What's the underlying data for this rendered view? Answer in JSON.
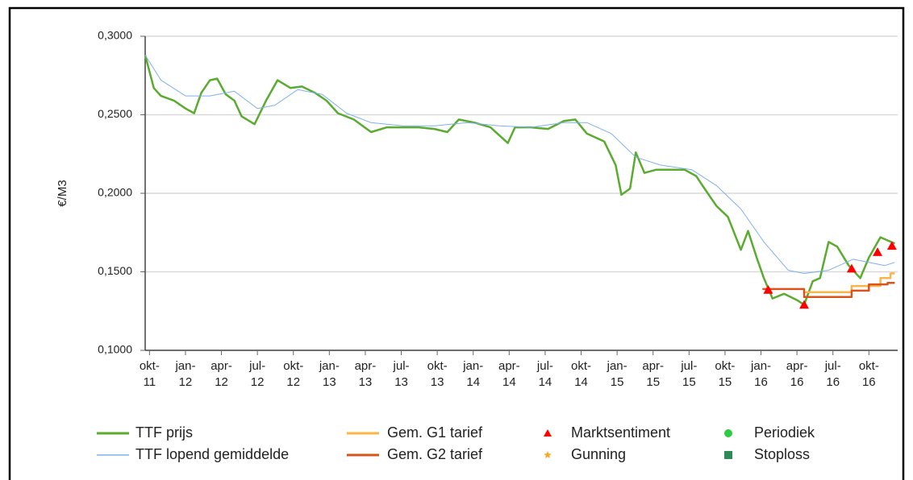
{
  "chart_data": {
    "type": "line",
    "y_label": "€/M3",
    "xlim": [
      2011.72,
      2016.95
    ],
    "ylim": [
      0.1,
      0.3
    ],
    "yticks": [
      {
        "value": 0.1,
        "label": "0,1000"
      },
      {
        "value": 0.15,
        "label": "0,1500"
      },
      {
        "value": 0.2,
        "label": "0,2000"
      },
      {
        "value": 0.25,
        "label": "0,2500"
      },
      {
        "value": 0.3,
        "label": "0,3000"
      }
    ],
    "xticks": [
      {
        "value": 2011.75,
        "label": [
          "okt-",
          "11"
        ]
      },
      {
        "value": 2012.0,
        "label": [
          "jan-",
          "12"
        ]
      },
      {
        "value": 2012.25,
        "label": [
          "apr-",
          "12"
        ]
      },
      {
        "value": 2012.5,
        "label": [
          "jul-",
          "12"
        ]
      },
      {
        "value": 2012.75,
        "label": [
          "okt-",
          "12"
        ]
      },
      {
        "value": 2013.0,
        "label": [
          "jan-",
          "13"
        ]
      },
      {
        "value": 2013.25,
        "label": [
          "apr-",
          "13"
        ]
      },
      {
        "value": 2013.5,
        "label": [
          "jul-",
          "13"
        ]
      },
      {
        "value": 2013.75,
        "label": [
          "okt-",
          "13"
        ]
      },
      {
        "value": 2014.0,
        "label": [
          "jan-",
          "14"
        ]
      },
      {
        "value": 2014.25,
        "label": [
          "apr-",
          "14"
        ]
      },
      {
        "value": 2014.5,
        "label": [
          "jul-",
          "14"
        ]
      },
      {
        "value": 2014.75,
        "label": [
          "okt-",
          "14"
        ]
      },
      {
        "value": 2015.0,
        "label": [
          "jan-",
          "15"
        ]
      },
      {
        "value": 2015.25,
        "label": [
          "apr-",
          "15"
        ]
      },
      {
        "value": 2015.5,
        "label": [
          "jul-",
          "15"
        ]
      },
      {
        "value": 2015.75,
        "label": [
          "okt-",
          "15"
        ]
      },
      {
        "value": 2016.0,
        "label": [
          "jan-",
          "16"
        ]
      },
      {
        "value": 2016.25,
        "label": [
          "apr-",
          "16"
        ]
      },
      {
        "value": 2016.5,
        "label": [
          "jul-",
          "16"
        ]
      },
      {
        "value": 2016.75,
        "label": [
          "okt-",
          "16"
        ]
      }
    ],
    "grid": true,
    "series": [
      {
        "name": "TTF prijs",
        "color": "#5aab2f",
        "marker": "line",
        "x": [
          2011.72,
          2011.78,
          2011.83,
          2011.92,
          2012.0,
          2012.06,
          2012.11,
          2012.17,
          2012.22,
          2012.28,
          2012.34,
          2012.39,
          2012.48,
          2012.56,
          2012.64,
          2012.73,
          2012.81,
          2012.9,
          2012.98,
          2013.06,
          2013.17,
          2013.29,
          2013.4,
          2013.51,
          2013.62,
          2013.73,
          2013.82,
          2013.9,
          2014.01,
          2014.12,
          2014.24,
          2014.29,
          2014.4,
          2014.52,
          2014.63,
          2014.71,
          2014.79,
          2014.91,
          2014.99,
          2015.03,
          2015.09,
          2015.13,
          2015.19,
          2015.27,
          2015.35,
          2015.47,
          2015.55,
          2015.6,
          2015.69,
          2015.77,
          2015.86,
          2015.91,
          2015.97,
          2016.02,
          2016.08,
          2016.16,
          2016.25,
          2016.3,
          2016.36,
          2016.41,
          2016.47,
          2016.53,
          2016.61,
          2016.69,
          2016.75,
          2016.83,
          2016.93
        ],
        "values": [
          0.288,
          0.267,
          0.262,
          0.259,
          0.254,
          0.251,
          0.264,
          0.272,
          0.273,
          0.263,
          0.259,
          0.249,
          0.244,
          0.259,
          0.272,
          0.267,
          0.268,
          0.264,
          0.259,
          0.251,
          0.247,
          0.239,
          0.242,
          0.242,
          0.242,
          0.241,
          0.239,
          0.247,
          0.245,
          0.242,
          0.232,
          0.242,
          0.242,
          0.241,
          0.246,
          0.247,
          0.238,
          0.233,
          0.218,
          0.199,
          0.203,
          0.226,
          0.213,
          0.215,
          0.215,
          0.215,
          0.211,
          0.204,
          0.192,
          0.185,
          0.164,
          0.176,
          0.159,
          0.146,
          0.133,
          0.136,
          0.132,
          0.129,
          0.144,
          0.146,
          0.169,
          0.166,
          0.154,
          0.146,
          0.159,
          0.172,
          0.168
        ]
      },
      {
        "name": "TTF lopend gemiddelde",
        "color": "#7fb0ec",
        "marker": "line",
        "x": [
          2011.72,
          2011.83,
          2012.0,
          2012.17,
          2012.34,
          2012.5,
          2012.62,
          2012.78,
          2012.95,
          2013.12,
          2013.29,
          2013.51,
          2013.73,
          2013.96,
          2014.18,
          2014.4,
          2014.63,
          2014.79,
          2014.96,
          2015.13,
          2015.3,
          2015.52,
          2015.69,
          2015.86,
          2016.02,
          2016.19,
          2016.3,
          2016.47,
          2016.64,
          2016.75,
          2016.86,
          2016.93
        ],
        "values": [
          0.288,
          0.272,
          0.262,
          0.262,
          0.265,
          0.254,
          0.256,
          0.266,
          0.263,
          0.251,
          0.245,
          0.243,
          0.243,
          0.245,
          0.243,
          0.242,
          0.245,
          0.245,
          0.238,
          0.223,
          0.218,
          0.215,
          0.205,
          0.19,
          0.169,
          0.151,
          0.149,
          0.151,
          0.158,
          0.156,
          0.154,
          0.156
        ]
      },
      {
        "name": "Gem. G1 tarief",
        "color": "#f9b44a",
        "marker": "line",
        "x": [
          2016.3,
          2016.63,
          2016.63,
          2016.83,
          2016.83,
          2016.9,
          2016.9,
          2016.93
        ],
        "values": [
          0.137,
          0.137,
          0.141,
          0.141,
          0.146,
          0.146,
          0.149,
          0.149
        ]
      },
      {
        "name": "Gem. G2  tarief",
        "color": "#d9531e",
        "marker": "line",
        "x": [
          2016.01,
          2016.3,
          2016.3,
          2016.63,
          2016.63,
          2016.75,
          2016.75,
          2016.88,
          2016.88,
          2016.93
        ],
        "values": [
          0.139,
          0.139,
          0.134,
          0.134,
          0.138,
          0.138,
          0.142,
          0.142,
          0.143,
          0.143
        ]
      },
      {
        "name": "Marktsentiment",
        "color": "#ff0000",
        "marker": "triangle",
        "x": [
          2016.05,
          2016.3,
          2016.63,
          2016.81,
          2016.91
        ],
        "values": [
          0.1385,
          0.129,
          0.152,
          0.1625,
          0.1665
        ]
      },
      {
        "name": "Gunning",
        "color": "#f9a825",
        "marker": "star",
        "x": [],
        "values": []
      },
      {
        "name": "Periodiek",
        "color": "#2ecc40",
        "marker": "circle",
        "x": [],
        "values": []
      },
      {
        "name": "Stoploss",
        "color": "#2e8b57",
        "marker": "square",
        "x": [],
        "values": []
      }
    ]
  }
}
